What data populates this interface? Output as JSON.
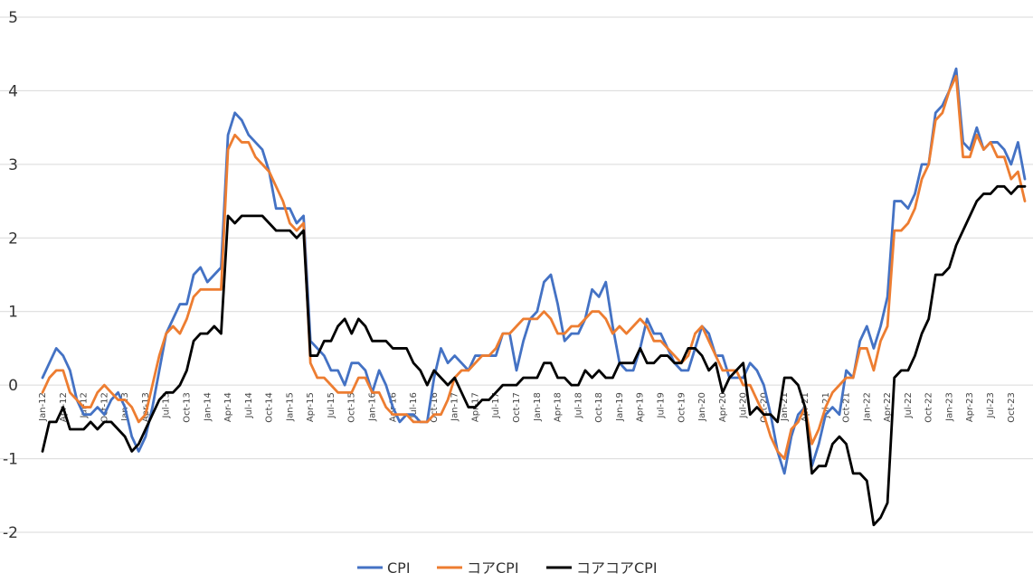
{
  "chart_data": {
    "type": "line",
    "title": "",
    "xlabel": "",
    "ylabel": "",
    "ylim": [
      -2,
      5
    ],
    "yticks": [
      -2,
      -1,
      0,
      1,
      2,
      3,
      4,
      5
    ],
    "grid": "horizontal",
    "legend_position": "bottom",
    "x_start": "2012-01",
    "x_end": "2023-12",
    "x_ticks": [
      "Jan-12",
      "Apr-12",
      "Jul-12",
      "Oct-12",
      "Jan-13",
      "Apr-13",
      "Jul-13",
      "Oct-13",
      "Jan-14",
      "Apr-14",
      "Jul-14",
      "Oct-14",
      "Jan-15",
      "Apr-15",
      "Jul-15",
      "Oct-15",
      "Jan-16",
      "Apr-16",
      "Jul-16",
      "Oct-16",
      "Jan-17",
      "Apr-17",
      "Jul-17",
      "Oct-17",
      "Jan-18",
      "Apr-18",
      "Jul-18",
      "Oct-18",
      "Jan-19",
      "Apr-19",
      "Jul-19",
      "Oct-19",
      "Jan-20",
      "Apr-20",
      "Jul-20",
      "Oct-20",
      "Jan-21",
      "Apr-21",
      "Jul-21",
      "Oct-21",
      "Jan-22",
      "Apr-22",
      "Jul-22",
      "Oct-22",
      "Jan-23",
      "Apr-23",
      "Jul-23",
      "Oct-23"
    ],
    "series": [
      {
        "name": "CPI",
        "color": "#4472C4",
        "values": [
          0.1,
          0.3,
          0.5,
          0.4,
          0.2,
          -0.2,
          -0.4,
          -0.4,
          -0.3,
          -0.4,
          -0.2,
          -0.1,
          -0.3,
          -0.7,
          -0.9,
          -0.7,
          -0.3,
          0.2,
          0.7,
          0.9,
          1.1,
          1.1,
          1.5,
          1.6,
          1.4,
          1.5,
          1.6,
          3.4,
          3.7,
          3.6,
          3.4,
          3.3,
          3.2,
          2.9,
          2.4,
          2.4,
          2.4,
          2.2,
          2.3,
          0.6,
          0.5,
          0.4,
          0.2,
          0.2,
          0.0,
          0.3,
          0.3,
          0.2,
          -0.1,
          0.2,
          0.0,
          -0.3,
          -0.5,
          -0.4,
          -0.4,
          -0.5,
          -0.5,
          0.1,
          0.5,
          0.3,
          0.4,
          0.3,
          0.2,
          0.4,
          0.4,
          0.4,
          0.4,
          0.7,
          0.7,
          0.2,
          0.6,
          0.9,
          1.0,
          1.4,
          1.5,
          1.1,
          0.6,
          0.7,
          0.7,
          0.9,
          1.3,
          1.2,
          1.4,
          0.8,
          0.3,
          0.2,
          0.2,
          0.5,
          0.9,
          0.7,
          0.7,
          0.5,
          0.3,
          0.2,
          0.2,
          0.5,
          0.8,
          0.7,
          0.4,
          0.4,
          0.1,
          0.1,
          0.1,
          0.3,
          0.2,
          0.0,
          -0.4,
          -0.9,
          -1.2,
          -0.7,
          -0.4,
          -0.3,
          -1.1,
          -0.8,
          -0.4,
          -0.3,
          -0.4,
          0.2,
          0.1,
          0.6,
          0.8,
          0.5,
          0.8,
          1.2,
          2.5,
          2.5,
          2.4,
          2.6,
          3.0,
          3.0,
          3.7,
          3.8,
          4.0,
          4.3,
          3.3,
          3.2,
          3.5,
          3.2,
          3.3,
          3.3,
          3.2,
          3.0,
          3.3,
          2.8
        ]
      },
      {
        "name": "コアCPI",
        "color": "#ED7D31",
        "values": [
          -0.1,
          0.1,
          0.2,
          0.2,
          -0.1,
          -0.2,
          -0.3,
          -0.3,
          -0.1,
          0.0,
          -0.1,
          -0.2,
          -0.2,
          -0.3,
          -0.5,
          -0.4,
          0.0,
          0.4,
          0.7,
          0.8,
          0.7,
          0.9,
          1.2,
          1.3,
          1.3,
          1.3,
          1.3,
          3.2,
          3.4,
          3.3,
          3.3,
          3.1,
          3.0,
          2.9,
          2.7,
          2.5,
          2.2,
          2.1,
          2.2,
          0.3,
          0.1,
          0.1,
          0.0,
          -0.1,
          -0.1,
          -0.1,
          0.1,
          0.1,
          -0.1,
          -0.1,
          -0.3,
          -0.4,
          -0.4,
          -0.4,
          -0.5,
          -0.5,
          -0.5,
          -0.4,
          -0.4,
          -0.2,
          0.1,
          0.2,
          0.2,
          0.3,
          0.4,
          0.4,
          0.5,
          0.7,
          0.7,
          0.8,
          0.9,
          0.9,
          0.9,
          1.0,
          0.9,
          0.7,
          0.7,
          0.8,
          0.8,
          0.9,
          1.0,
          1.0,
          0.9,
          0.7,
          0.8,
          0.7,
          0.8,
          0.9,
          0.8,
          0.6,
          0.6,
          0.5,
          0.4,
          0.3,
          0.4,
          0.7,
          0.8,
          0.6,
          0.4,
          0.2,
          0.2,
          0.2,
          0.0,
          0.0,
          -0.2,
          -0.4,
          -0.7,
          -0.9,
          -1.0,
          -0.6,
          -0.5,
          -0.3,
          -0.8,
          -0.6,
          -0.3,
          -0.1,
          0.0,
          0.1,
          0.1,
          0.5,
          0.5,
          0.2,
          0.6,
          0.8,
          2.1,
          2.1,
          2.2,
          2.4,
          2.8,
          3.0,
          3.6,
          3.7,
          4.0,
          4.2,
          3.1,
          3.1,
          3.4,
          3.2,
          3.3,
          3.1,
          3.1,
          2.8,
          2.9,
          2.5
        ]
      },
      {
        "name": "コアコアCPI",
        "color": "#000000",
        "values": [
          -0.9,
          -0.5,
          -0.5,
          -0.3,
          -0.6,
          -0.6,
          -0.6,
          -0.5,
          -0.6,
          -0.5,
          -0.5,
          -0.6,
          -0.7,
          -0.9,
          -0.8,
          -0.6,
          -0.4,
          -0.2,
          -0.1,
          -0.1,
          0.0,
          0.2,
          0.6,
          0.7,
          0.7,
          0.8,
          0.7,
          2.3,
          2.2,
          2.3,
          2.3,
          2.3,
          2.3,
          2.2,
          2.1,
          2.1,
          2.1,
          2.0,
          2.1,
          0.4,
          0.4,
          0.6,
          0.6,
          0.8,
          0.9,
          0.7,
          0.9,
          0.8,
          0.6,
          0.6,
          0.6,
          0.5,
          0.5,
          0.5,
          0.3,
          0.2,
          0.0,
          0.2,
          0.1,
          0.0,
          0.1,
          -0.1,
          -0.3,
          -0.3,
          -0.2,
          -0.2,
          -0.1,
          0.0,
          0.0,
          0.0,
          0.1,
          0.1,
          0.1,
          0.3,
          0.3,
          0.1,
          0.1,
          0.0,
          0.0,
          0.2,
          0.1,
          0.2,
          0.1,
          0.1,
          0.3,
          0.3,
          0.3,
          0.5,
          0.3,
          0.3,
          0.4,
          0.4,
          0.3,
          0.3,
          0.5,
          0.5,
          0.4,
          0.2,
          0.3,
          -0.1,
          0.1,
          0.2,
          0.3,
          -0.4,
          -0.3,
          -0.4,
          -0.4,
          -0.5,
          0.1,
          0.1,
          0.0,
          -0.3,
          -1.2,
          -1.1,
          -1.1,
          -0.8,
          -0.7,
          -0.8,
          -1.2,
          -1.2,
          -1.3,
          -1.9,
          -1.8,
          -1.6,
          0.1,
          0.2,
          0.2,
          0.4,
          0.7,
          0.9,
          1.5,
          1.5,
          1.6,
          1.9,
          2.1,
          2.3,
          2.5,
          2.6,
          2.6,
          2.7,
          2.7,
          2.6,
          2.7,
          2.7
        ]
      }
    ]
  }
}
